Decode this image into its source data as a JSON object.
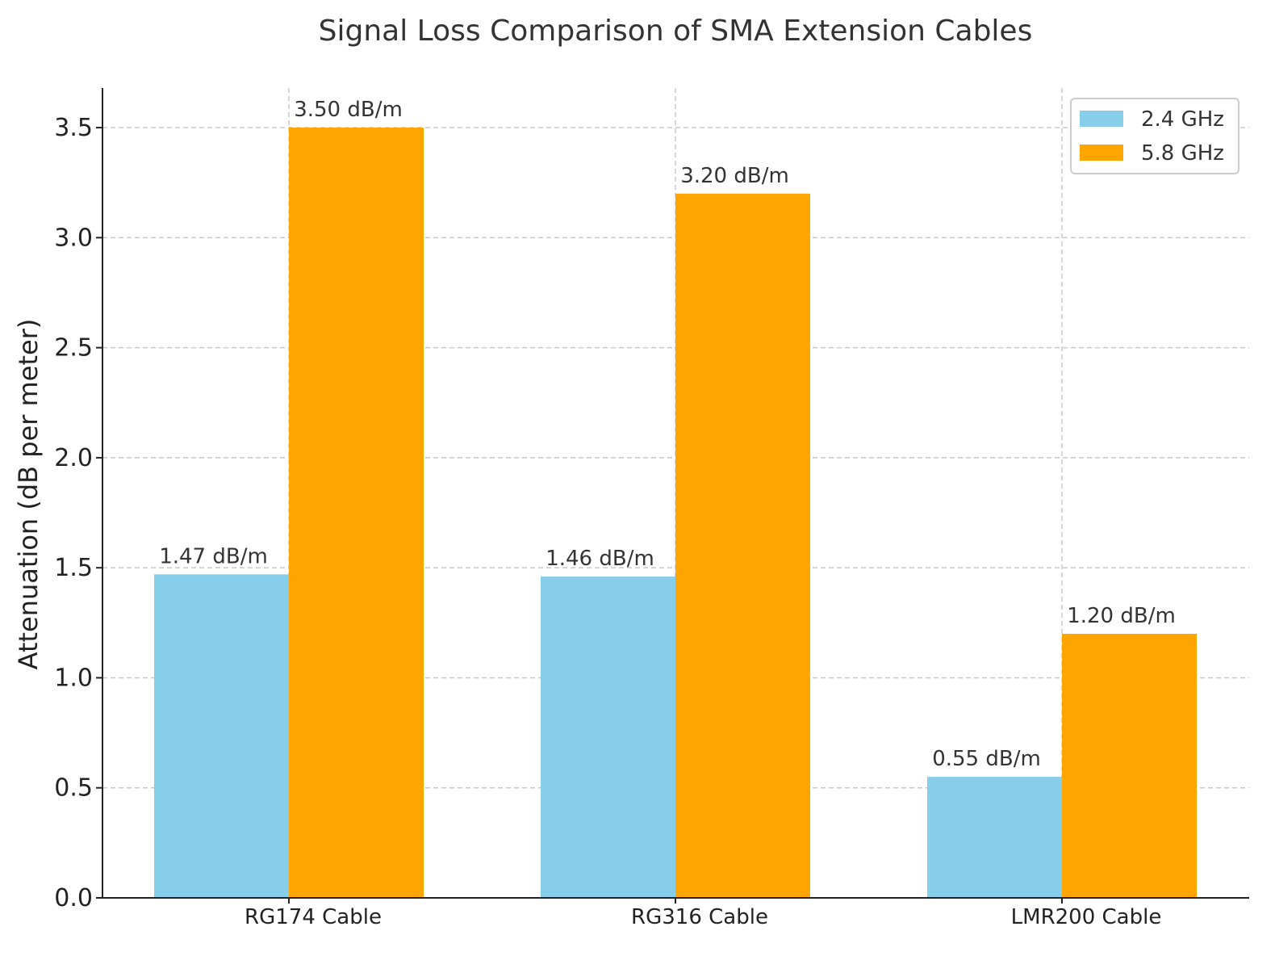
{
  "chart_data": {
    "type": "bar",
    "title": "Signal Loss Comparison of SMA Extension Cables",
    "xlabel": "",
    "ylabel": "Attenuation (dB per meter)",
    "categories": [
      "RG174 Cable",
      "RG316 Cable",
      "LMR200 Cable"
    ],
    "series": [
      {
        "name": "2.4 GHz",
        "color": "#87CEEB",
        "values": [
          1.47,
          1.46,
          0.55
        ],
        "labels": [
          "1.47 dB/m",
          "1.46 dB/m",
          "0.55 dB/m"
        ]
      },
      {
        "name": "5.8 GHz",
        "color": "#FFA500",
        "values": [
          3.5,
          3.2,
          1.2
        ],
        "labels": [
          "3.50 dB/m",
          "3.20 dB/m",
          "1.20 dB/m"
        ]
      }
    ],
    "ylim": [
      0,
      3.68
    ],
    "yticks": [
      0.0,
      0.5,
      1.0,
      1.5,
      2.0,
      2.5,
      3.0,
      3.5
    ],
    "ytick_labels": [
      "0.0",
      "0.5",
      "1.0",
      "1.5",
      "2.0",
      "2.5",
      "3.0",
      "3.5"
    ],
    "grid": true,
    "legend_position": "top-right"
  }
}
